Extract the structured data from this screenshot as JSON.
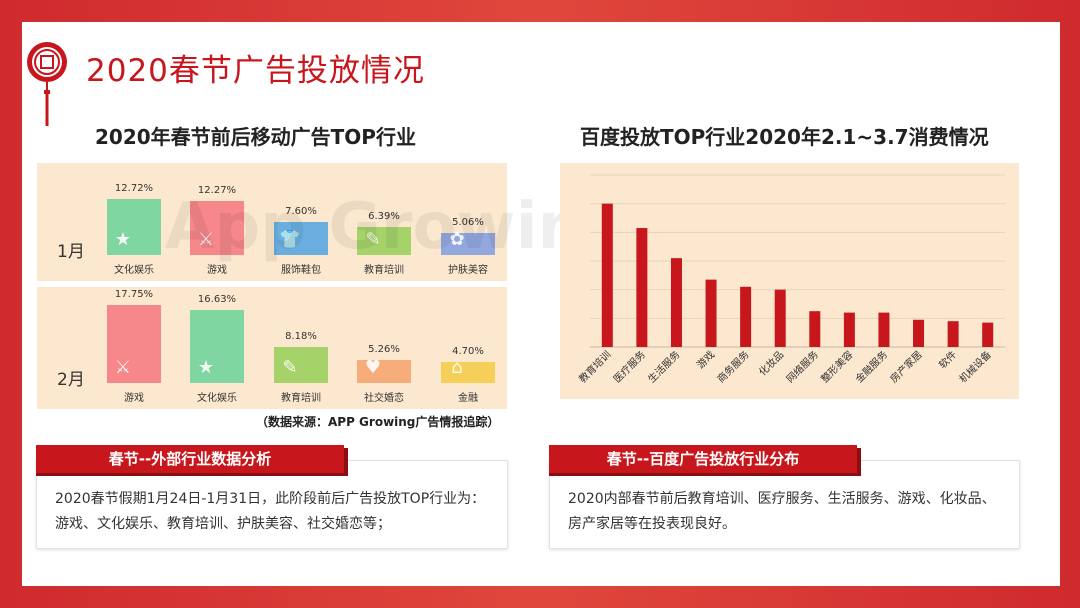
{
  "title": "2020春节广告投放情况",
  "left_chart": {
    "subtitle": "2020年春节前后移动广告TOP行业",
    "source": "（数据来源：APP Growing广告情报追踪）",
    "months": [
      {
        "label": "1月",
        "bars": [
          {
            "pct": "12.72%",
            "value": 12.72,
            "category": "文化娱乐",
            "color": "#7fd6a0",
            "icon": "star-icon"
          },
          {
            "pct": "12.27%",
            "value": 12.27,
            "category": "游戏",
            "color": "#f6878a",
            "icon": "swords-icon"
          },
          {
            "pct": "7.60%",
            "value": 7.6,
            "category": "服饰鞋包",
            "color": "#6aaee0",
            "icon": "shirt-icon"
          },
          {
            "pct": "6.39%",
            "value": 6.39,
            "category": "教育培训",
            "color": "#a5d36a",
            "icon": "teacher-icon"
          },
          {
            "pct": "5.06%",
            "value": 5.06,
            "category": "护肤美容",
            "color": "#94a8e0",
            "icon": "cosmetics-icon"
          }
        ]
      },
      {
        "label": "2月",
        "bars": [
          {
            "pct": "17.75%",
            "value": 17.75,
            "category": "游戏",
            "color": "#f6878a",
            "icon": "swords-icon"
          },
          {
            "pct": "16.63%",
            "value": 16.63,
            "category": "文化娱乐",
            "color": "#7fd6a0",
            "icon": "star-icon"
          },
          {
            "pct": "8.18%",
            "value": 8.18,
            "category": "教育培训",
            "color": "#a5d36a",
            "icon": "teacher-icon"
          },
          {
            "pct": "5.26%",
            "value": 5.26,
            "category": "社交婚恋",
            "color": "#f7ad7b",
            "icon": "love-icon"
          },
          {
            "pct": "4.70%",
            "value": 4.7,
            "category": "金融",
            "color": "#f6cf58",
            "icon": "bank-icon"
          }
        ]
      }
    ]
  },
  "chart_data": {
    "type": "bar",
    "title": "百度投放TOP行业2020年2.1~3.7消费情况",
    "categories": [
      "教育培训",
      "医疗服务",
      "生活服务",
      "游戏",
      "商务服务",
      "化妆品",
      "网络服务",
      "整形美容",
      "金融服务",
      "房产家居",
      "软件",
      "机械设备"
    ],
    "values": [
      100,
      83,
      62,
      47,
      42,
      40,
      25,
      24,
      24,
      19,
      18,
      17
    ],
    "ylim": [
      0,
      120
    ],
    "grid": true,
    "color": "#c8161d"
  },
  "sections": [
    {
      "banner": "春节--外部行业数据分析",
      "text": "2020春节假期1月24日-1月31日，此阶段前后广告投放TOP行业为：游戏、文化娱乐、教育培训、护肤美容、社交婚恋等；"
    },
    {
      "banner": "春节--百度广告投放行业分布",
      "text": "2020内部春节前后教育培训、医疗服务、生活服务、游戏、化妆品、房产家居等在投表现良好。"
    }
  ]
}
